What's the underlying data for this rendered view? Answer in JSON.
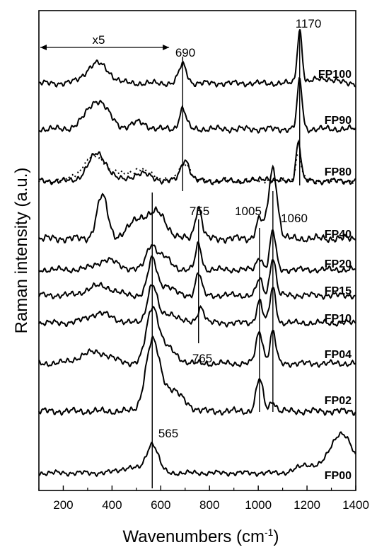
{
  "chart_data": {
    "type": "line",
    "xlabel_main": "Wavenumbers (cm",
    "xlabel_sup": "-1",
    "xlabel_end": ")",
    "ylabel": "Raman intensity (a.u.)",
    "xlim": [
      100,
      1400
    ],
    "xticks": [
      "200",
      "400",
      "600",
      "800",
      "1000",
      "1200",
      "1400"
    ],
    "scale_note": "x5",
    "series": [
      {
        "name": "FP100",
        "baseline": 0.05,
        "peaks": [
          [
            340,
            0.32,
            45
          ],
          [
            690,
            0.3,
            16
          ],
          [
            1170,
            0.85,
            10
          ],
          [
            1270,
            0.08,
            40
          ]
        ]
      },
      {
        "name": "FP90",
        "baseline": 0.05,
        "peaks": [
          [
            340,
            0.42,
            45
          ],
          [
            510,
            0.1,
            30
          ],
          [
            690,
            0.3,
            14
          ],
          [
            1170,
            0.72,
            10
          ]
        ]
      },
      {
        "name": "FP80",
        "baseline": 0.05,
        "peaks": [
          [
            340,
            0.45,
            38
          ],
          [
            520,
            0.12,
            40
          ],
          [
            700,
            0.35,
            18
          ],
          [
            1030,
            0.05,
            20
          ],
          [
            1165,
            0.65,
            10
          ]
        ]
      },
      {
        "name": "FP40",
        "baseline": 0.1,
        "peaks": [
          [
            360,
            0.55,
            22
          ],
          [
            510,
            0.25,
            40
          ],
          [
            590,
            0.3,
            35
          ],
          [
            755,
            0.4,
            14
          ],
          [
            1005,
            0.25,
            14
          ],
          [
            1060,
            0.9,
            18
          ]
        ]
      },
      {
        "name": "FP20",
        "baseline": 0.1,
        "peaks": [
          [
            380,
            0.15,
            45
          ],
          [
            560,
            0.35,
            20
          ],
          [
            610,
            0.2,
            30
          ],
          [
            755,
            0.4,
            12
          ],
          [
            1005,
            0.2,
            12
          ],
          [
            1060,
            0.6,
            12
          ]
        ]
      },
      {
        "name": "FP15",
        "baseline": 0.12,
        "peaks": [
          [
            350,
            0.15,
            50
          ],
          [
            565,
            0.55,
            18
          ],
          [
            620,
            0.15,
            30
          ],
          [
            755,
            0.35,
            12
          ],
          [
            1005,
            0.25,
            12
          ],
          [
            1060,
            0.6,
            12
          ]
        ]
      },
      {
        "name": "FP10",
        "baseline": 0.12,
        "peaks": [
          [
            350,
            0.15,
            50
          ],
          [
            565,
            0.6,
            20
          ],
          [
            640,
            0.15,
            30
          ],
          [
            765,
            0.25,
            14
          ],
          [
            1005,
            0.35,
            12
          ],
          [
            1060,
            0.55,
            12
          ]
        ]
      },
      {
        "name": "FP04",
        "baseline": 0.05,
        "peaks": [
          [
            330,
            0.18,
            60
          ],
          [
            565,
            0.8,
            24
          ],
          [
            620,
            0.25,
            40
          ],
          [
            1005,
            0.5,
            14
          ],
          [
            1060,
            0.5,
            12
          ]
        ]
      },
      {
        "name": "FP02",
        "baseline": 0.02,
        "peaks": [
          [
            565,
            0.9,
            28
          ],
          [
            640,
            0.3,
            50
          ],
          [
            1005,
            0.45,
            14
          ],
          [
            1060,
            0.15,
            12
          ]
        ]
      },
      {
        "name": "FP00",
        "baseline": 0.05,
        "peaks": [
          [
            470,
            0.1,
            40
          ],
          [
            565,
            0.55,
            24
          ],
          [
            1200,
            0.15,
            40
          ],
          [
            1340,
            0.75,
            45
          ]
        ]
      }
    ],
    "dotted_series": {
      "overlays": "FP80",
      "peaks": [
        [
          330,
          0.4,
          50
        ],
        [
          510,
          0.18,
          55
        ],
        [
          700,
          0.3,
          22
        ],
        [
          1165,
          0.45,
          12
        ]
      ]
    },
    "annotations": [
      {
        "label": "690",
        "x": 690
      },
      {
        "label": "1170",
        "x": 1170
      },
      {
        "label": "755",
        "x": 755
      },
      {
        "label": "1005",
        "x": 1005
      },
      {
        "label": "1060",
        "x": 1060
      },
      {
        "label": "765",
        "x": 765
      },
      {
        "label": "565",
        "x": 565
      }
    ],
    "grid": false
  }
}
